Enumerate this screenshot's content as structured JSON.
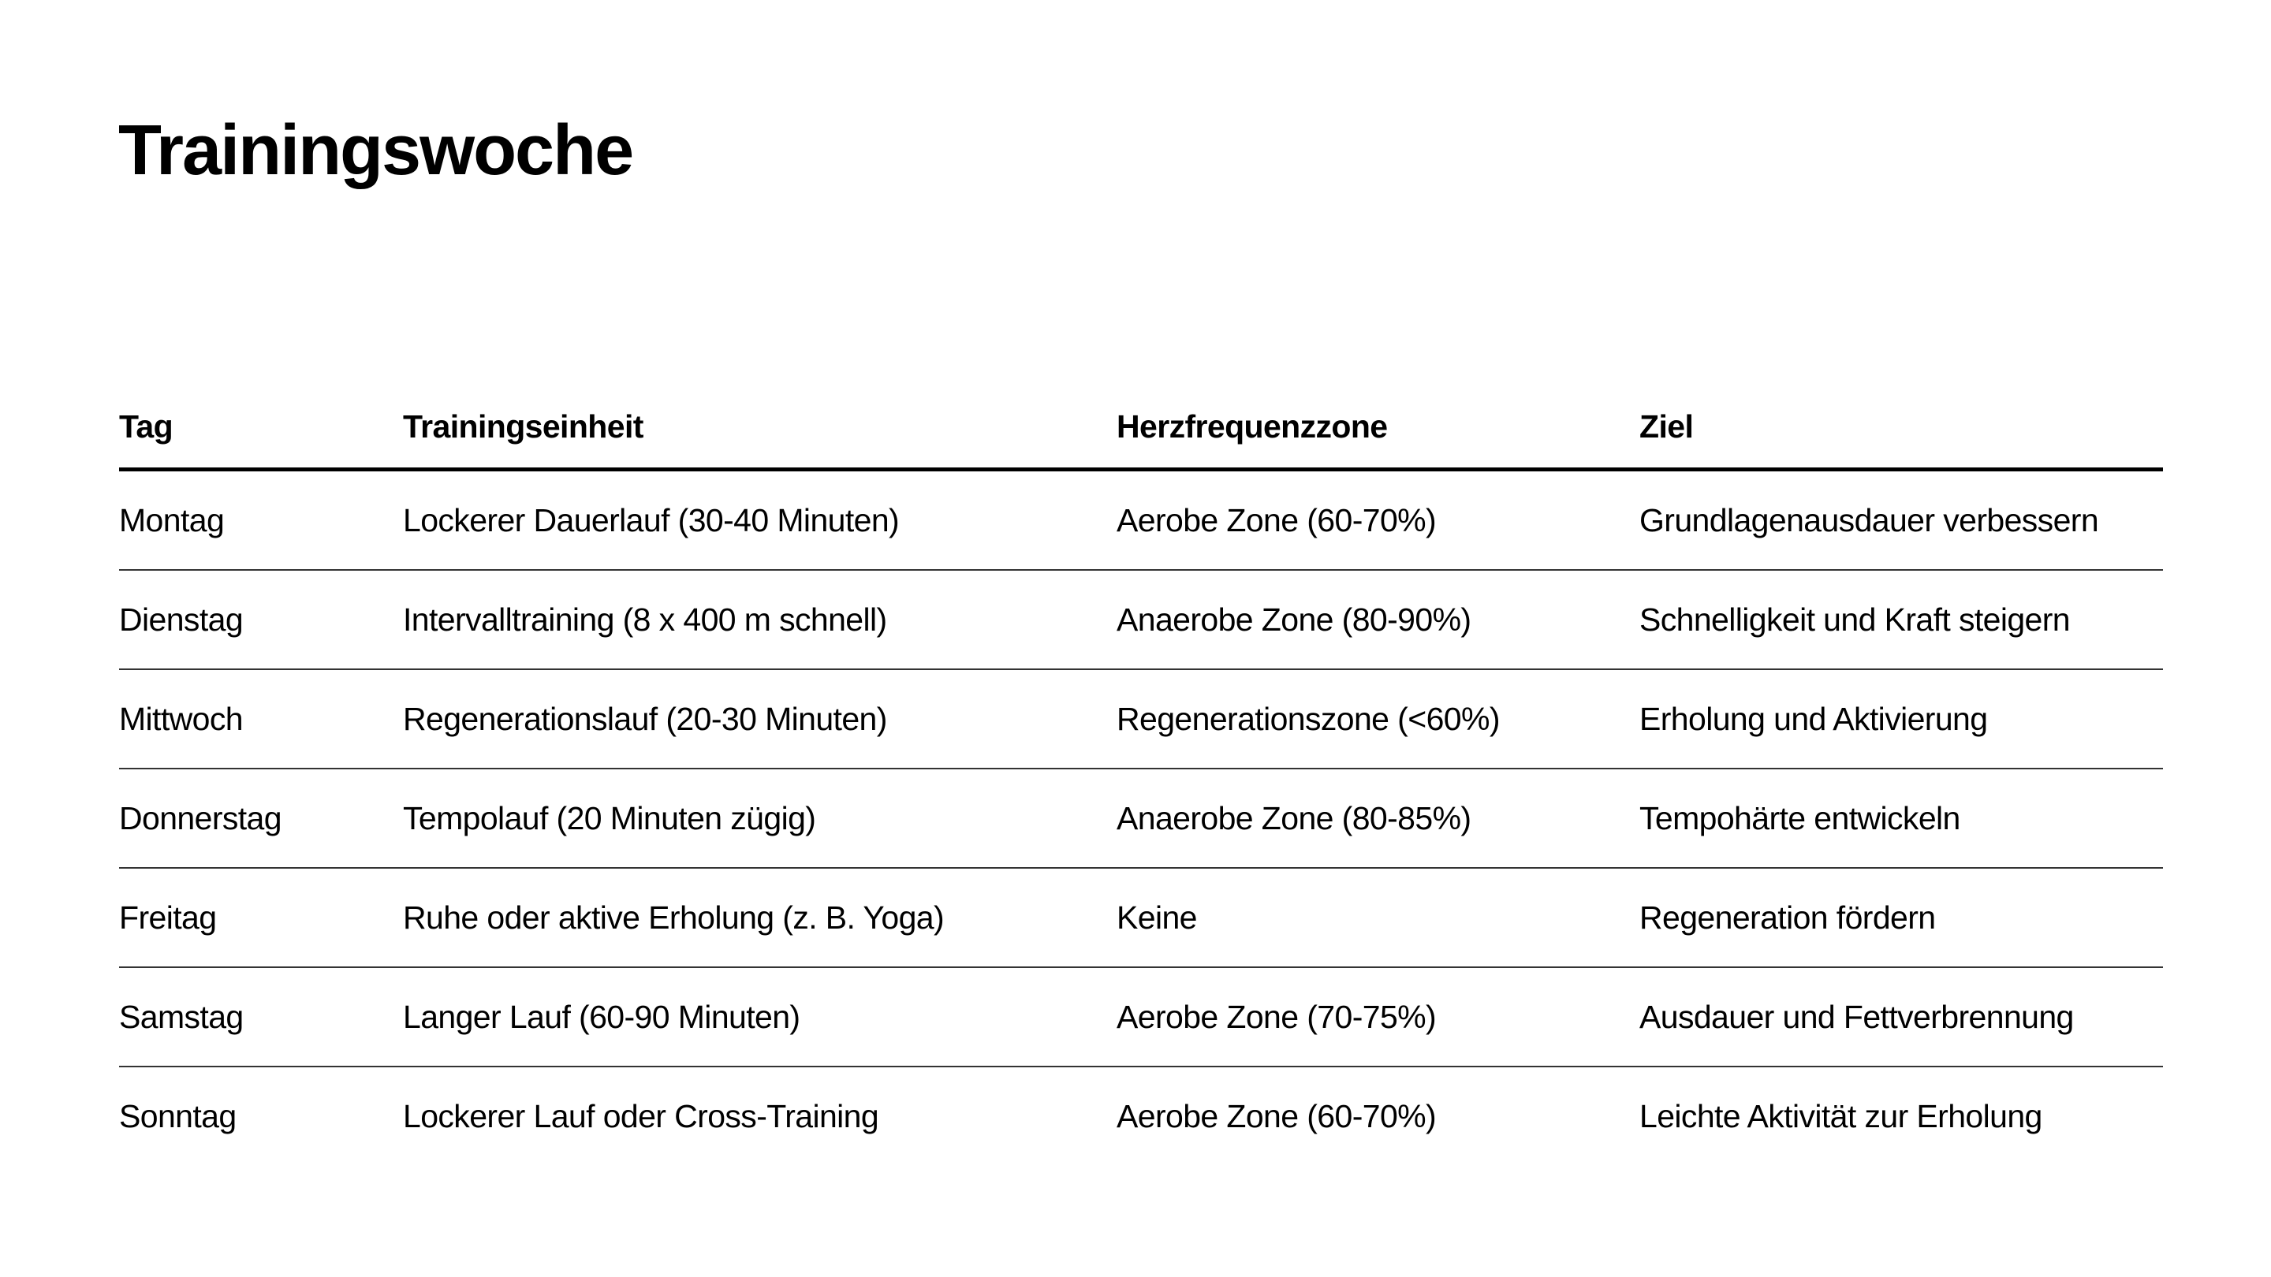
{
  "title": "Trainingswoche",
  "table": {
    "headers": [
      "Tag",
      "Trainingseinheit",
      "Herzfrequenzzone",
      "Ziel"
    ],
    "rows": [
      [
        "Montag",
        "Lockerer Dauerlauf (30-40 Minuten)",
        "Aerobe Zone (60-70%)",
        "Grundlagenausdauer verbessern"
      ],
      [
        "Dienstag",
        "Intervalltraining (8 x 400 m schnell)",
        "Anaerobe Zone (80-90%)",
        "Schnelligkeit und Kraft steigern"
      ],
      [
        "Mittwoch",
        "Regenerationslauf (20-30 Minuten)",
        "Regenerationszone (<60%)",
        "Erholung und Aktivierung"
      ],
      [
        "Donnerstag",
        "Tempolauf (20 Minuten zügig)",
        "Anaerobe Zone (80-85%)",
        "Tempohärte entwickeln"
      ],
      [
        "Freitag",
        "Ruhe oder aktive Erholung (z. B. Yoga)",
        "Keine",
        "Regeneration fördern"
      ],
      [
        "Samstag",
        "Langer Lauf (60-90 Minuten)",
        "Aerobe Zone (70-75%)",
        "Ausdauer und Fettverbrennung"
      ],
      [
        "Sonntag",
        "Lockerer Lauf oder Cross-Training",
        "Aerobe Zone (60-70%)",
        "Leichte Aktivität zur Erholung"
      ]
    ]
  }
}
